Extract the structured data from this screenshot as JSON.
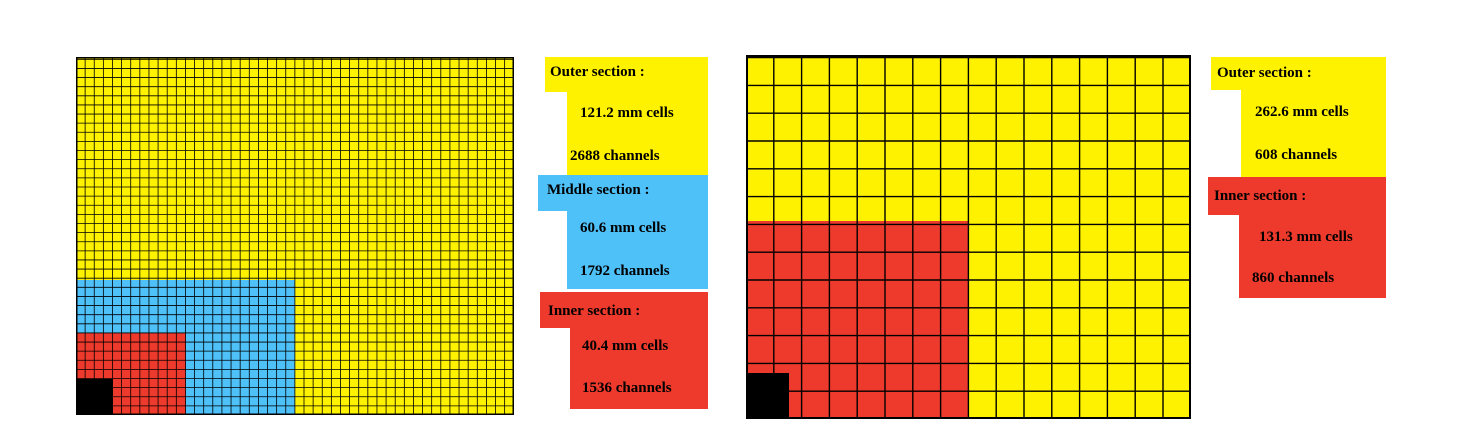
{
  "colors": {
    "yellow": "#FFF200",
    "blue": "#4FC1F9",
    "red": "#EE3A2C",
    "black": "#000000",
    "line": "#000000"
  },
  "calorimeter_a": {
    "outer": {
      "title": "Outer section :",
      "cell_size": "121.2 mm  cells",
      "channels": "2688  channels"
    },
    "middle": {
      "title": "Middle section :",
      "cell_size": "60.6 mm  cells",
      "channels": "1792 channels"
    },
    "inner": {
      "title": "Inner section :",
      "cell_size": "40.4 mm  cells",
      "channels": "1536  channels"
    }
  },
  "calorimeter_b": {
    "outer": {
      "title": "Outer  section :",
      "cell_size": "262.6 mm  cells",
      "channels": "608  channels"
    },
    "inner": {
      "title": "Inner section :",
      "cell_size": "131.3 mm  cells",
      "channels": "860  channels"
    }
  }
}
